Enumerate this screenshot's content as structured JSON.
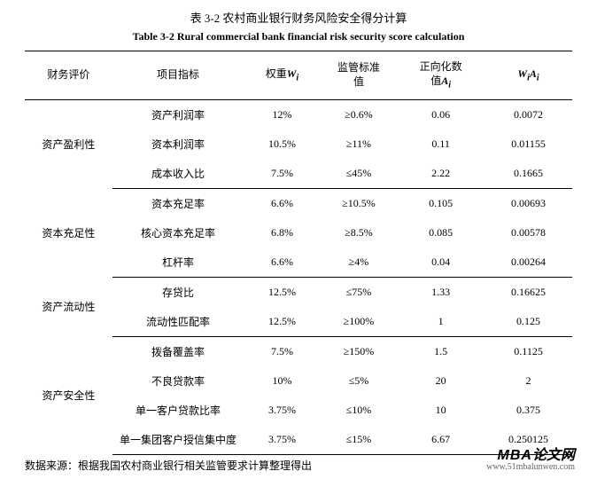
{
  "title_zh": "表 3-2  农村商业银行财务风险安全得分计算",
  "title_en": "Table 3-2 Rural commercial bank financial risk security score calculation",
  "headers": {
    "col1": "财务评价",
    "col2": "项目指标",
    "col3_prefix": "权重",
    "col3_sym": "W",
    "col3_sub": "i",
    "col4_line1": "监管标准",
    "col4_line2": "值",
    "col5_line1": "正向化数",
    "col5_line2_prefix": "值",
    "col5_sym": "A",
    "col5_sub": "i",
    "col6_sym1": "W",
    "col6_sub1": "i",
    "col6_sym2": "A",
    "col6_sub2": "i"
  },
  "groups": [
    {
      "category": "资产盈利性",
      "rows": [
        {
          "indicator": "资产利润率",
          "weight": "12%",
          "standard": "≥0.6%",
          "norm": "0.06",
          "wa": "0.0072"
        },
        {
          "indicator": "资本利润率",
          "weight": "10.5%",
          "standard": "≥11%",
          "norm": "0.11",
          "wa": "0.01155"
        },
        {
          "indicator": "成本收入比",
          "weight": "7.5%",
          "standard": "≤45%",
          "norm": "2.22",
          "wa": "0.1665"
        }
      ]
    },
    {
      "category": "资本充足性",
      "rows": [
        {
          "indicator": "资本充足率",
          "weight": "6.6%",
          "standard": "≥10.5%",
          "norm": "0.105",
          "wa": "0.00693"
        },
        {
          "indicator": "核心资本充足率",
          "weight": "6.8%",
          "standard": "≥8.5%",
          "norm": "0.085",
          "wa": "0.00578"
        },
        {
          "indicator": "杠杆率",
          "weight": "6.6%",
          "standard": "≥4%",
          "norm": "0.04",
          "wa": "0.00264"
        }
      ]
    },
    {
      "category": "资产流动性",
      "rows": [
        {
          "indicator": "存贷比",
          "weight": "12.5%",
          "standard": "≤75%",
          "norm": "1.33",
          "wa": "0.16625"
        },
        {
          "indicator": "流动性匹配率",
          "weight": "12.5%",
          "standard": "≥100%",
          "norm": "1",
          "wa": "0.125"
        }
      ]
    },
    {
      "category": "资产安全性",
      "rows": [
        {
          "indicator": "拨备覆盖率",
          "weight": "7.5%",
          "standard": "≥150%",
          "norm": "1.5",
          "wa": "0.1125"
        },
        {
          "indicator": "不良贷款率",
          "weight": "10%",
          "standard": "≤5%",
          "norm": "20",
          "wa": "2"
        },
        {
          "indicator": "单一客户贷款比率",
          "weight": "3.75%",
          "standard": "≤10%",
          "norm": "10",
          "wa": "0.375"
        },
        {
          "indicator": "单一集团客户授信集中度",
          "weight": "3.75%",
          "standard": "≤15%",
          "norm": "6.67",
          "wa": "0.250125"
        }
      ]
    }
  ],
  "source": "数据来源：根据我国农村商业银行相关监管要求计算整理得出",
  "watermark_main": "MBA",
  "watermark_suffix": "论文网",
  "watermark_url": "www.51mbalunwen.com"
}
